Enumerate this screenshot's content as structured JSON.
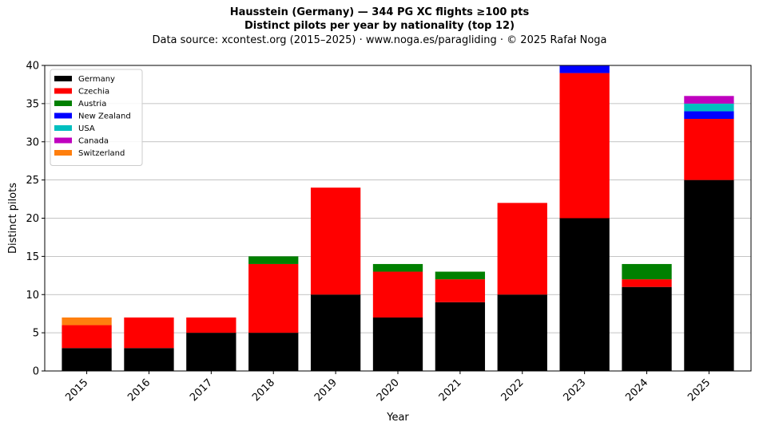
{
  "chart_data": {
    "type": "bar",
    "stacked": true,
    "title": "Hausstein (Germany)  —  344 PG XC flights ≥100 pts",
    "subtitle": "Distinct pilots per year by nationality (top 12)",
    "source": "Data source: xcontest.org (2015–2025)  ·  www.noga.es/paragliding  ·  © 2025 Rafał Noga",
    "xlabel": "Year",
    "ylabel": "Distinct pilots",
    "ylim": [
      0,
      40
    ],
    "yticks": [
      0,
      5,
      10,
      15,
      20,
      25,
      30,
      35,
      40
    ],
    "grid": "horizontal",
    "legend_position": "top-left",
    "categories": [
      "2015",
      "2016",
      "2017",
      "2018",
      "2019",
      "2020",
      "2021",
      "2022",
      "2023",
      "2024",
      "2025"
    ],
    "series": [
      {
        "name": "Germany",
        "color": "#000000",
        "values": [
          3,
          3,
          5,
          5,
          10,
          7,
          9,
          10,
          20,
          11,
          25
        ]
      },
      {
        "name": "Czechia",
        "color": "#ff0000",
        "values": [
          3,
          4,
          2,
          9,
          14,
          6,
          3,
          12,
          19,
          1,
          8
        ]
      },
      {
        "name": "Austria",
        "color": "#008000",
        "values": [
          0,
          0,
          0,
          1,
          0,
          1,
          1,
          0,
          0,
          2,
          0
        ]
      },
      {
        "name": "New Zealand",
        "color": "#0000ff",
        "values": [
          0,
          0,
          0,
          0,
          0,
          0,
          0,
          0,
          1,
          0,
          1
        ]
      },
      {
        "name": "USA",
        "color": "#00bfbf",
        "values": [
          0,
          0,
          0,
          0,
          0,
          0,
          0,
          0,
          0,
          0,
          1
        ]
      },
      {
        "name": "Canada",
        "color": "#bf00bf",
        "values": [
          0,
          0,
          0,
          0,
          0,
          0,
          0,
          0,
          0,
          0,
          1
        ]
      },
      {
        "name": "Switzerland",
        "color": "#ff7f0e",
        "values": [
          1,
          0,
          0,
          0,
          0,
          0,
          0,
          0,
          0,
          0,
          0
        ]
      }
    ]
  }
}
